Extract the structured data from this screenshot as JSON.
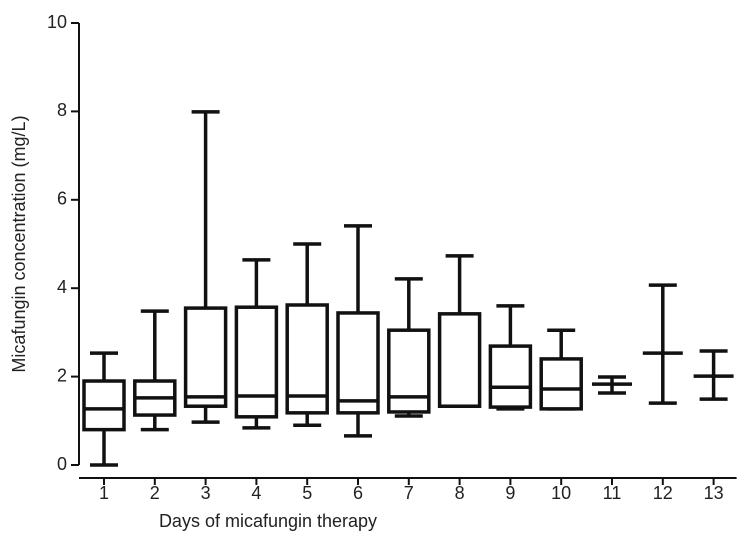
{
  "chart_data": {
    "type": "box",
    "xlabel": "Days of micafungin therapy",
    "ylabel": "Micafungin concentration (mg/L)",
    "categories": [
      "1",
      "2",
      "3",
      "4",
      "5",
      "6",
      "7",
      "8",
      "9",
      "10",
      "11",
      "12",
      "13"
    ],
    "color": "#111111",
    "min": [
      0,
      0.8,
      0.97,
      0.84,
      0.9,
      0.66,
      1.11,
      1.33,
      1.27,
      1.27,
      1.63,
      1.4,
      1.49
    ],
    "q1": [
      0.8,
      1.13,
      1.33,
      1.09,
      1.18,
      1.18,
      1.2,
      1.33,
      1.31,
      1.27,
      null,
      null,
      null
    ],
    "median": [
      1.27,
      1.52,
      1.54,
      1.56,
      1.56,
      1.45,
      1.54,
      1.33,
      1.76,
      1.72,
      1.83,
      2.53,
      2.01
    ],
    "q3": [
      1.9,
      1.9,
      3.55,
      3.57,
      3.62,
      3.44,
      3.05,
      3.42,
      2.69,
      2.4,
      null,
      null,
      null
    ],
    "max": [
      2.53,
      3.48,
      7.99,
      4.64,
      5.0,
      5.41,
      4.21,
      4.73,
      3.6,
      3.05,
      1.99,
      4.07,
      2.58
    ],
    "ylim": [
      0,
      10
    ],
    "yticks": [
      0,
      2,
      4,
      6,
      8,
      10
    ]
  }
}
